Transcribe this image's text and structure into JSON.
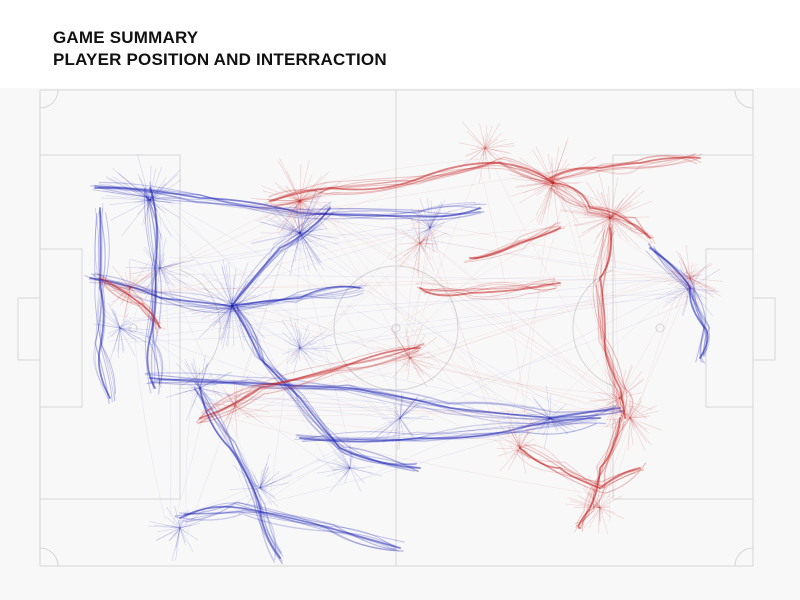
{
  "header": {
    "title": "GAME SUMMARY",
    "subtitle": "PLAYER POSITION AND INTERRACTION"
  },
  "colors": {
    "team_blue": "#1a1fb4",
    "team_red": "#c41c1c",
    "pitch_background": "#f8f8f8",
    "pitch_lines": "#d6d6d6"
  },
  "pitch": {
    "surface": "soccer-pitch",
    "markings": [
      "halfway-line",
      "center-circle",
      "center-spot",
      "penalty-areas",
      "goal-areas",
      "goals",
      "corner-arcs"
    ]
  },
  "teams": [
    {
      "id": "blue",
      "side": "left",
      "color_key": "team_blue"
    },
    {
      "id": "red",
      "side": "right",
      "color_key": "team_red"
    }
  ]
}
